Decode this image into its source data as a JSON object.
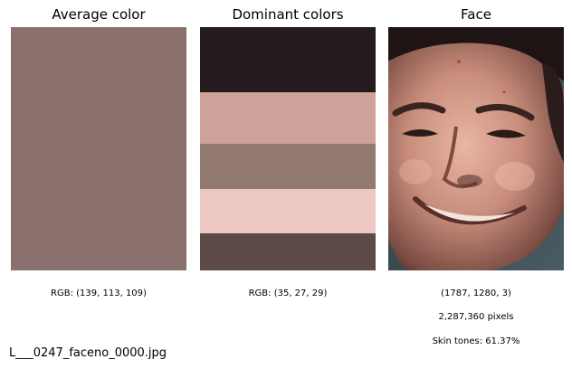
{
  "panels": {
    "average": {
      "title": "Average color",
      "color": "#8b716d",
      "rgb_label": "RGB: (139, 113, 109)"
    },
    "dominant": {
      "title": "Dominant colors",
      "rgb_label": "RGB: (35, 27, 29)",
      "bands": [
        {
          "color": "#231b1d",
          "share": 0.268
        },
        {
          "color": "#cfa299",
          "share": 0.212
        },
        {
          "color": "#937a6f",
          "share": 0.186
        },
        {
          "color": "#ecc7c3",
          "share": 0.182
        },
        {
          "color": "#5e4a47",
          "share": 0.152
        }
      ]
    },
    "face": {
      "title": "Face",
      "shape_label": "(1787, 1280, 3)",
      "pixels_label": "2,287,360 pixels",
      "skin_label": "Skin tones: 61.37%"
    }
  },
  "filename": "L___0247_faceno_0000.jpg"
}
